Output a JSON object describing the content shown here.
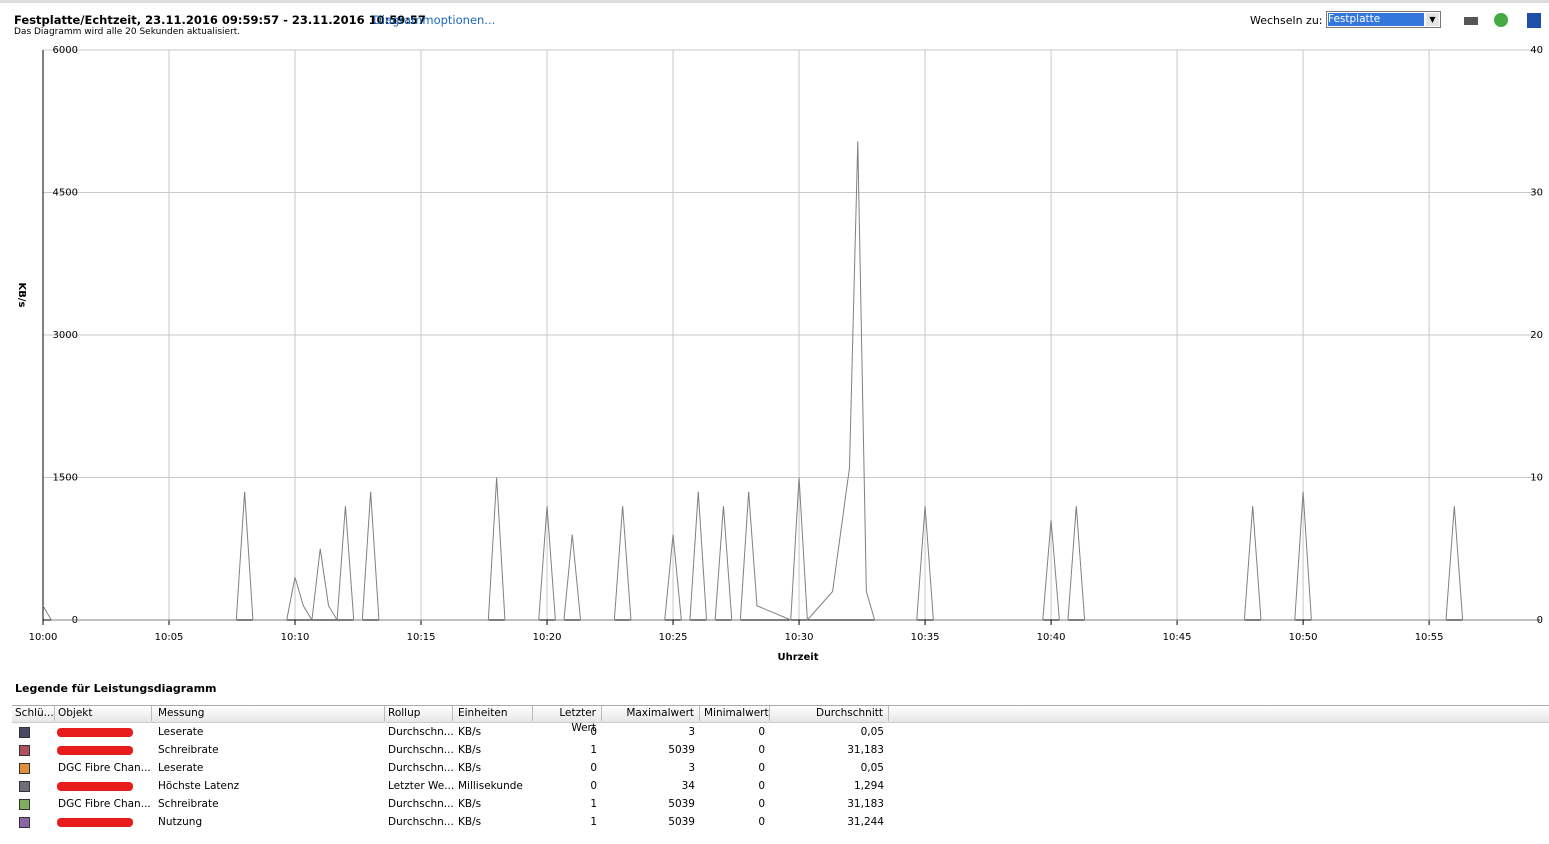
{
  "header": {
    "title": "Festplatte/Echtzeit, 23.11.2016 09:59:57 - 23.11.2016 10:59:57",
    "options_link": "Diagrammoptionen...",
    "subtitle": "Das Diagramm wird alle 20 Sekunden aktualisiert.",
    "switch_label": "Wechseln zu:",
    "switch_value": "Festplatte"
  },
  "chart_data": {
    "type": "line",
    "ylabel": "KB/s",
    "xlabel": "Uhrzeit",
    "x": [
      0,
      0.33,
      7.67,
      8,
      8.33,
      9.67,
      10,
      10.33,
      10.67,
      11,
      11.33,
      11.67,
      12,
      12.33,
      12.67,
      13,
      13.33,
      17.67,
      18,
      18.33,
      19.67,
      20,
      20.33,
      20.67,
      21,
      21.33,
      22.67,
      23,
      23.33,
      24.67,
      25,
      25.33,
      25.67,
      26,
      26.33,
      26.67,
      27,
      27.33,
      27.67,
      28,
      28.33,
      29.67,
      30,
      30.33,
      31.33,
      32,
      32.33,
      32.67,
      33,
      34.67,
      35,
      35.33,
      39.67,
      40,
      40.33,
      40.67,
      41,
      41.33,
      47.67,
      48,
      48.33,
      49.67,
      50,
      50.33,
      55.67,
      56,
      56.33,
      59.33
    ],
    "series": [
      {
        "name": "Schreibrate",
        "color": "#808080",
        "values": [
          150,
          0,
          0,
          1350,
          0,
          0,
          450,
          150,
          0,
          750,
          150,
          0,
          1200,
          0,
          0,
          1350,
          0,
          0,
          1500,
          0,
          0,
          1200,
          0,
          0,
          900,
          0,
          0,
          1200,
          0,
          0,
          900,
          0,
          0,
          1350,
          0,
          0,
          1200,
          0,
          0,
          1350,
          150,
          0,
          1500,
          0,
          300,
          1600,
          5039,
          300,
          0,
          0,
          1200,
          0,
          0,
          1050,
          0,
          0,
          1200,
          0,
          0,
          1200,
          0,
          0,
          1350,
          0,
          0,
          1200,
          0,
          0
        ]
      }
    ],
    "xlim": [
      0,
      59.4
    ],
    "xticks": [
      {
        "value": 0,
        "label": "10:00"
      },
      {
        "value": 5,
        "label": "10:05"
      },
      {
        "value": 10,
        "label": "10:10"
      },
      {
        "value": 15,
        "label": "10:15"
      },
      {
        "value": 20,
        "label": "10:20"
      },
      {
        "value": 25,
        "label": "10:25"
      },
      {
        "value": 30,
        "label": "10:30"
      },
      {
        "value": 35,
        "label": "10:35"
      },
      {
        "value": 40,
        "label": "10:40"
      },
      {
        "value": 45,
        "label": "10:45"
      },
      {
        "value": 50,
        "label": "10:50"
      },
      {
        "value": 55,
        "label": "10:55"
      }
    ],
    "ylim": [
      0,
      6000
    ],
    "yticks": [
      0,
      1500,
      3000,
      4500,
      6000
    ],
    "y2lim": [
      0,
      40
    ],
    "y2ticks": [
      0,
      10,
      20,
      30,
      40
    ],
    "grid": true
  },
  "legend_table": {
    "title": "Legende für Leistungsdiagramm",
    "columns": [
      "Schlü...",
      "Objekt",
      "Messung",
      "Rollup",
      "Einheiten",
      "Letzter Wert",
      "Maximalwert",
      "Minimalwert",
      "Durchschnitt"
    ],
    "rows": [
      {
        "color": "#4a4a66",
        "cells": [
          null,
          "Leserate",
          "Durchschn...",
          "KB/s",
          "0",
          "3",
          "0",
          "0,05"
        ]
      },
      {
        "color": "#b0505e",
        "cells": [
          null,
          "Schreibrate",
          "Durchschn...",
          "KB/s",
          "1",
          "5039",
          "0",
          "31,183"
        ]
      },
      {
        "color": "#e0903c",
        "cells": [
          "DGC Fibre Chan...",
          "Leserate",
          "Durchschn...",
          "KB/s",
          "0",
          "3",
          "0",
          "0,05"
        ]
      },
      {
        "color": "#6e6e7a",
        "cells": [
          null,
          "Höchste Latenz",
          "Letzter We...",
          "Millisekunde",
          "0",
          "34",
          "0",
          "1,294"
        ]
      },
      {
        "color": "#7fae5e",
        "cells": [
          "DGC Fibre Chan...",
          "Schreibrate",
          "Durchschn...",
          "KB/s",
          "1",
          "5039",
          "0",
          "31,183"
        ]
      },
      {
        "color": "#8a66a6",
        "cells": [
          null,
          "Nutzung",
          "Durchschn...",
          "KB/s",
          "1",
          "5039",
          "0",
          "31,244"
        ]
      }
    ]
  }
}
